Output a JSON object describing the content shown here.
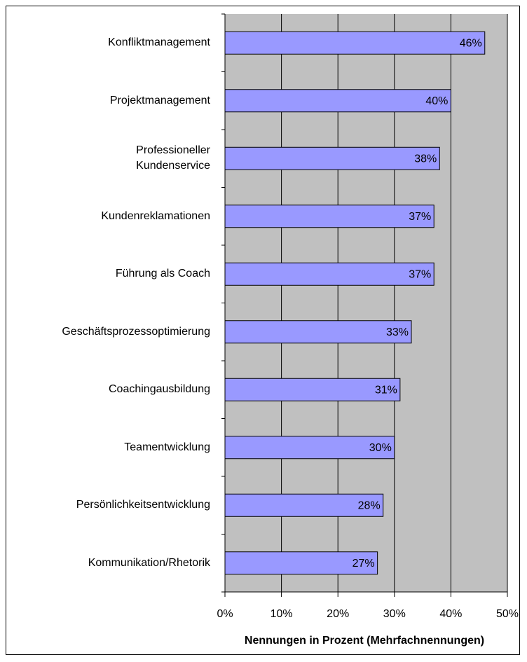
{
  "chart_data": {
    "type": "barh",
    "categories": [
      "Konfliktmanagement",
      "Projektmanagement",
      "Professioneller\nKundenservice",
      "Kundenreklamationen",
      "Führung als Coach",
      "Geschäftsprozessoptimierung",
      "Coachingausbildung",
      "Teamentwicklung",
      "Persönlichkeitsentwicklung",
      "Kommunikation/Rhetorik"
    ],
    "values": [
      46,
      40,
      38,
      37,
      37,
      33,
      31,
      30,
      28,
      27
    ],
    "value_labels": [
      "46%",
      "40%",
      "38%",
      "37%",
      "37%",
      "33%",
      "31%",
      "30%",
      "28%",
      "27%"
    ],
    "color": "#9999ff",
    "xlabel": "Nennungen in Prozent (Mehrfachnennungen)",
    "xlim": [
      0,
      50
    ],
    "xticks": [
      {
        "value": 0,
        "label": "0%"
      },
      {
        "value": 10,
        "label": "10%"
      },
      {
        "value": 20,
        "label": "20%"
      },
      {
        "value": 30,
        "label": "30%"
      },
      {
        "value": 40,
        "label": "40%"
      },
      {
        "value": 50,
        "label": "50%"
      }
    ],
    "grid": true
  }
}
